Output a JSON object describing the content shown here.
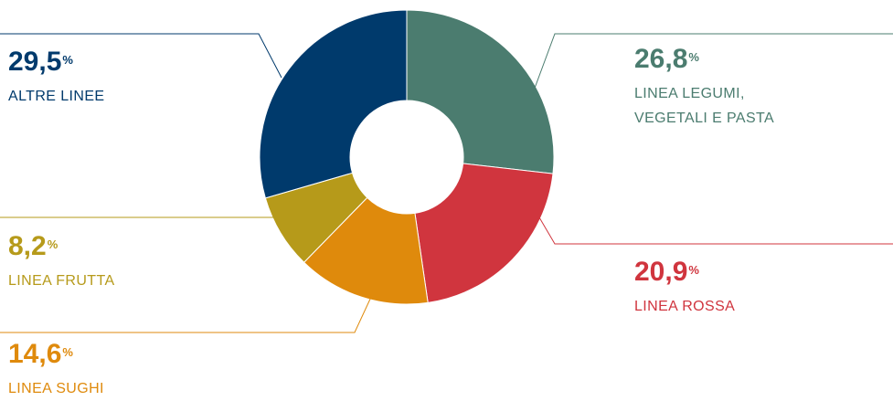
{
  "chart_data": {
    "type": "pie",
    "donut": true,
    "start_angle": "top (12 o'clock)",
    "direction": "clockwise",
    "percent_symbol": "%",
    "slices": [
      {
        "value_label": "26,8",
        "value": 26.8,
        "label_lines": [
          "LINEA LEGUMI,",
          "VEGETALI E PASTA"
        ],
        "color": "#4b7c6f"
      },
      {
        "value_label": "20,9",
        "value": 20.9,
        "label_lines": [
          "LINEA ROSSA"
        ],
        "color": "#d0353e"
      },
      {
        "value_label": "14,6",
        "value": 14.6,
        "label_lines": [
          "LINEA SUGHI"
        ],
        "color": "#df8a0c"
      },
      {
        "value_label": "8,2",
        "value": 8.2,
        "label_lines": [
          "LINEA FRUTTA"
        ],
        "color": "#b69a1a"
      },
      {
        "value_label": "29,5",
        "value": 29.5,
        "label_lines": [
          "ALTRE LINEE"
        ],
        "color": "#003a6c"
      }
    ]
  }
}
